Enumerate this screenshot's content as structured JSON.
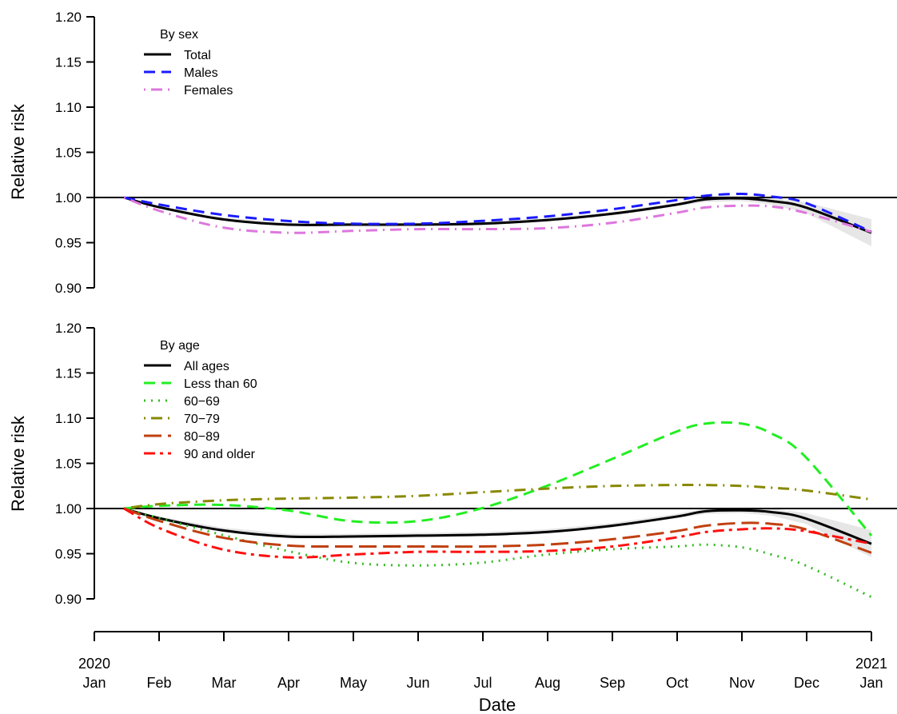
{
  "chart_data": [
    {
      "type": "line",
      "xlabel": "",
      "ylabel": "Relative risk",
      "legend_title": "By sex",
      "legend_position": "top-left",
      "ylim": [
        0.9,
        1.2
      ],
      "y_ticks": [
        "0.90",
        "0.95",
        "1.00",
        "1.05",
        "1.10",
        "1.15",
        "1.20"
      ],
      "reference_line": 1.0,
      "x": [
        "2020-01-15",
        "2020-02-01",
        "2020-03-01",
        "2020-04-01",
        "2020-05-01",
        "2020-06-01",
        "2020-07-01",
        "2020-08-01",
        "2020-09-01",
        "2020-10-01",
        "2020-10-15",
        "2020-11-01",
        "2020-11-15",
        "2020-12-01",
        "2021-01-01"
      ],
      "series": [
        {
          "name": "Total",
          "color": "#000000",
          "dash": "solid",
          "values": [
            1.0,
            0.989,
            0.976,
            0.97,
            0.97,
            0.97,
            0.971,
            0.975,
            0.982,
            0.992,
            0.998,
            0.999,
            0.996,
            0.989,
            0.961
          ],
          "ci_band": {
            "lower": [
              1.0,
              0.988,
              0.975,
              0.968,
              0.968,
              0.968,
              0.969,
              0.973,
              0.98,
              0.99,
              0.995,
              0.996,
              0.992,
              0.983,
              0.946
            ],
            "upper": [
              1.0,
              0.99,
              0.978,
              0.972,
              0.972,
              0.972,
              0.973,
              0.977,
              0.984,
              0.994,
              1.001,
              1.002,
              1.0,
              0.995,
              0.976
            ]
          }
        },
        {
          "name": "Males",
          "color": "#1a1aff",
          "dash": "dashed",
          "values": [
            1.0,
            0.992,
            0.981,
            0.974,
            0.971,
            0.971,
            0.974,
            0.979,
            0.987,
            0.997,
            1.002,
            1.004,
            1.001,
            0.994,
            0.962
          ]
        },
        {
          "name": "Females",
          "color": "#dd77dd",
          "dash": "dotdash",
          "values": [
            1.0,
            0.985,
            0.967,
            0.961,
            0.963,
            0.965,
            0.965,
            0.966,
            0.972,
            0.983,
            0.989,
            0.991,
            0.99,
            0.983,
            0.962
          ]
        }
      ]
    },
    {
      "type": "line",
      "xlabel": "Date",
      "ylabel": "Relative risk",
      "legend_title": "By age",
      "legend_position": "top-left",
      "ylim": [
        0.9,
        1.2
      ],
      "y_ticks": [
        "0.90",
        "0.95",
        "1.00",
        "1.05",
        "1.10",
        "1.15",
        "1.20"
      ],
      "reference_line": 1.0,
      "x_tick_labels": [
        [
          "2020",
          "Jan"
        ],
        [
          "",
          "Feb"
        ],
        [
          "",
          "Mar"
        ],
        [
          "",
          "Apr"
        ],
        [
          "",
          "May"
        ],
        [
          "",
          "Jun"
        ],
        [
          "",
          "Jul"
        ],
        [
          "",
          "Aug"
        ],
        [
          "",
          "Sep"
        ],
        [
          "",
          "Oct"
        ],
        [
          "",
          "Nov"
        ],
        [
          "",
          "Dec"
        ],
        [
          "2021",
          "Jan"
        ]
      ],
      "x": [
        "2020-01-15",
        "2020-02-01",
        "2020-03-01",
        "2020-04-01",
        "2020-05-01",
        "2020-06-01",
        "2020-07-01",
        "2020-08-01",
        "2020-09-01",
        "2020-10-01",
        "2020-10-15",
        "2020-11-01",
        "2020-11-15",
        "2020-12-01",
        "2021-01-01"
      ],
      "series": [
        {
          "name": "All ages",
          "color": "#000000",
          "dash": "solid",
          "values": [
            1.0,
            0.989,
            0.976,
            0.969,
            0.969,
            0.97,
            0.971,
            0.974,
            0.981,
            0.991,
            0.997,
            0.998,
            0.996,
            0.989,
            0.961
          ],
          "ci_band": {
            "lower": [
              1.0,
              0.988,
              0.974,
              0.967,
              0.967,
              0.968,
              0.969,
              0.972,
              0.979,
              0.989,
              0.994,
              0.995,
              0.992,
              0.983,
              0.946
            ],
            "upper": [
              1.0,
              0.991,
              0.979,
              0.972,
              0.972,
              0.973,
              0.974,
              0.977,
              0.984,
              0.994,
              1.0,
              1.001,
              1.0,
              0.995,
              0.976
            ]
          }
        },
        {
          "name": "Less than 60",
          "color": "#22ee22",
          "dash": "dashed",
          "values": [
            1.0,
            1.003,
            1.004,
            0.998,
            0.986,
            0.986,
            1.0,
            1.025,
            1.055,
            1.085,
            1.094,
            1.094,
            1.083,
            1.057,
            0.97
          ]
        },
        {
          "name": "60−69",
          "color": "#33bb22",
          "dash": "dotted",
          "values": [
            1.0,
            0.989,
            0.971,
            0.953,
            0.94,
            0.937,
            0.94,
            0.949,
            0.955,
            0.958,
            0.96,
            0.957,
            0.949,
            0.937,
            0.902
          ]
        },
        {
          "name": "70−79",
          "color": "#888800",
          "dash": "dotdash",
          "values": [
            1.0,
            1.005,
            1.009,
            1.011,
            1.012,
            1.014,
            1.018,
            1.022,
            1.025,
            1.026,
            1.026,
            1.025,
            1.023,
            1.02,
            1.01
          ]
        },
        {
          "name": "80−89",
          "color": "#c04010",
          "dash": "longdash",
          "values": [
            1.0,
            0.986,
            0.968,
            0.959,
            0.958,
            0.958,
            0.958,
            0.96,
            0.966,
            0.975,
            0.981,
            0.984,
            0.983,
            0.977,
            0.951
          ]
        },
        {
          "name": "90 and older",
          "color": "#ff1111",
          "dash": "twodash",
          "values": [
            1.0,
            0.978,
            0.955,
            0.946,
            0.949,
            0.952,
            0.952,
            0.953,
            0.958,
            0.968,
            0.974,
            0.977,
            0.978,
            0.975,
            0.961
          ]
        }
      ]
    }
  ]
}
